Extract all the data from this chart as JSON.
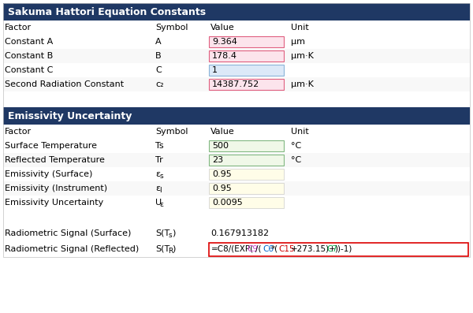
{
  "title1": "Sakuma Hattori Equation Constants",
  "title1_bg": "#1f3864",
  "title1_fg": "#ffffff",
  "header1": [
    "Factor",
    "Symbol",
    "Value",
    "Unit"
  ],
  "rows1": [
    {
      "factor": "Constant A",
      "symbol": "A",
      "value": "9.364",
      "unit": "μm",
      "val_bg": "#fce4ec",
      "val_border": "#e06080"
    },
    {
      "factor": "Constant B",
      "symbol": "B",
      "value": "178.4",
      "unit": "μm·K",
      "val_bg": "#fce4ec",
      "val_border": "#e06080"
    },
    {
      "factor": "Constant C",
      "symbol": "C",
      "value": "1",
      "unit": "",
      "val_bg": "#dce9f8",
      "val_border": "#8ab4d8"
    },
    {
      "factor": "Second Radiation Constant",
      "symbol": "c₂",
      "value": "14387.752",
      "unit": "μm·K",
      "val_bg": "#fce4ec",
      "val_border": "#e06080"
    }
  ],
  "title2": "Emissivity Uncertainty",
  "title2_bg": "#1f3864",
  "title2_fg": "#ffffff",
  "header2": [
    "Factor",
    "Symbol",
    "Value",
    "Unit"
  ],
  "rows2": [
    {
      "factor": "Surface Temperature",
      "symbol": "Ts",
      "value": "500",
      "unit": "°C",
      "val_bg": "#f0f8e8",
      "val_border": "#82b882"
    },
    {
      "factor": "Reflected Temperature",
      "symbol": "Tr",
      "value": "23",
      "unit": "°C",
      "val_bg": "#f0f8e8",
      "val_border": "#82b882"
    },
    {
      "factor": "Emissivity (Surface)",
      "symbol_main": "ε",
      "symbol_sub": "s",
      "value": "0.95",
      "unit": "",
      "val_bg": "#fffde8"
    },
    {
      "factor": "Emissivity (Instrument)",
      "symbol_main": "ε",
      "symbol_sub": "I",
      "value": "0.95",
      "unit": "",
      "val_bg": "#fffde8"
    },
    {
      "factor": "Emissivity Uncertainty",
      "symbol_main": "U",
      "symbol_sub": "ε",
      "value": "0.0095",
      "unit": "",
      "val_bg": "#fffde8"
    }
  ],
  "signal_surface_factor": "Radiometric Signal (Surface)",
  "signal_surface_symbol_main": "S(T",
  "signal_surface_symbol_sub": "s",
  "signal_surface_value": "0.167913182",
  "signal_reflected_factor": "Radiometric Signal (Reflected)",
  "signal_reflected_symbol_main": "S(T",
  "signal_reflected_symbol_sub": "R",
  "formula_segments": [
    [
      "=C8/(EXP(",
      "#000000"
    ],
    [
      "C9",
      "#cc44cc"
    ],
    [
      "/(",
      "#000000"
    ],
    [
      "C6",
      "#0066cc"
    ],
    [
      "*(",
      "#000000"
    ],
    [
      "C15",
      "#cc0000"
    ],
    [
      "+273.15)+",
      "#000000"
    ],
    [
      "C7",
      "#00aa44"
    ],
    [
      "))-1)",
      "#000000"
    ]
  ],
  "formula_box_color": "#dd0000",
  "fig_bg": "#ffffff",
  "text_color": "#000000",
  "border_color": "#c0c0c0"
}
